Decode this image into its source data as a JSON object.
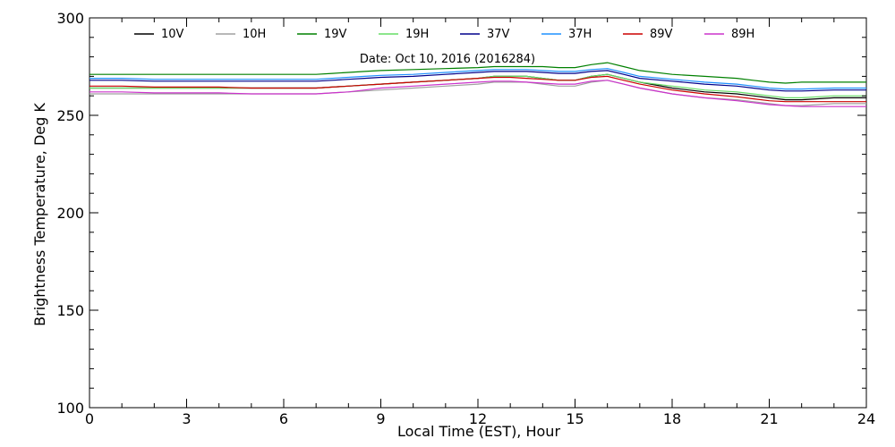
{
  "chart_data": {
    "type": "line",
    "annotation": "Date: Oct 10, 2016 (2016284)",
    "xlabel": "Local Time (EST), Hour",
    "ylabel": "Brightness Temperature, Deg K",
    "xlim": [
      0,
      24
    ],
    "ylim": [
      100,
      300
    ],
    "xticks": [
      0,
      3,
      6,
      9,
      12,
      15,
      18,
      21,
      24
    ],
    "yticks": [
      100,
      150,
      200,
      250,
      300
    ],
    "grid": false,
    "legend_position": "top",
    "x": [
      0,
      1,
      2,
      3,
      4,
      5,
      6,
      7,
      7.5,
      8,
      8.5,
      9,
      10,
      11,
      12,
      12.5,
      13,
      13.5,
      14,
      14.5,
      15,
      15.5,
      16,
      16.5,
      17,
      18,
      19,
      20,
      20.5,
      21,
      21.5,
      22,
      23,
      24
    ],
    "series": [
      {
        "name": "10V",
        "color": "#000000",
        "values": [
          264,
          264,
          264,
          264,
          264,
          264,
          264,
          264,
          264.5,
          265,
          265.5,
          266,
          267,
          268,
          269,
          270,
          270,
          270,
          269,
          268,
          268,
          270,
          271,
          269,
          267,
          264,
          262,
          261,
          260,
          259,
          258,
          258,
          259,
          259
        ]
      },
      {
        "name": "10H",
        "color": "#a0a0a0",
        "values": [
          261,
          261,
          261,
          261,
          261,
          261,
          261,
          261,
          261.5,
          262,
          262.5,
          263,
          264,
          265,
          266,
          267,
          267,
          267,
          266,
          265,
          265,
          267,
          268,
          266,
          264,
          261,
          259,
          258,
          257,
          256,
          255,
          255,
          256,
          256
        ]
      },
      {
        "name": "19V",
        "color": "#008000",
        "values": [
          271,
          271,
          271,
          271,
          271,
          271,
          271,
          271,
          271.5,
          272,
          272.5,
          273,
          273.5,
          274,
          274.5,
          275,
          275,
          275,
          275,
          274.5,
          274.5,
          276,
          277,
          275,
          273,
          271,
          270,
          269,
          268,
          267,
          266.5,
          267,
          267,
          267
        ]
      },
      {
        "name": "19H",
        "color": "#66dd66",
        "values": [
          264,
          264,
          264,
          264,
          264,
          264,
          264,
          264,
          264.5,
          265,
          265.5,
          266,
          267,
          268,
          269,
          270,
          270,
          270,
          269,
          268,
          268,
          270,
          271,
          269,
          267,
          265,
          263,
          262,
          261,
          260,
          259,
          259,
          260,
          260
        ]
      },
      {
        "name": "37V",
        "color": "#00008b",
        "values": [
          268,
          268,
          267.5,
          267.5,
          267.5,
          267.5,
          267.5,
          267.5,
          268,
          268.5,
          269,
          269.5,
          270,
          271,
          272,
          272.5,
          272.5,
          272.5,
          272,
          271.5,
          271.5,
          272.5,
          273,
          271,
          269,
          267.5,
          266,
          265,
          264,
          263,
          262.5,
          262.5,
          263,
          263
        ]
      },
      {
        "name": "37H",
        "color": "#1e90ff",
        "values": [
          269,
          269,
          268.5,
          268.5,
          268.5,
          268.5,
          268.5,
          268.5,
          269,
          269.5,
          270,
          270.5,
          271,
          272,
          273,
          273.5,
          273.5,
          273.5,
          273,
          272.5,
          272.5,
          273.5,
          274,
          272,
          270,
          268.5,
          267,
          266,
          265,
          264,
          263.5,
          263.5,
          264,
          264
        ]
      },
      {
        "name": "89V",
        "color": "#cc0000",
        "values": [
          265,
          265,
          264.5,
          264.5,
          264.5,
          264,
          264,
          264,
          264.5,
          265,
          265.5,
          266,
          267,
          268,
          269,
          269.5,
          269.5,
          269,
          268.5,
          268,
          268,
          269.5,
          270,
          268,
          266,
          263,
          261,
          259.5,
          258.5,
          257.5,
          257,
          257,
          257,
          257
        ]
      },
      {
        "name": "89H",
        "color": "#cc33cc",
        "values": [
          262,
          262,
          261.5,
          261.5,
          261.5,
          261,
          261,
          261,
          261.5,
          262,
          263,
          264,
          265,
          266,
          267,
          267.5,
          267.5,
          267,
          266.5,
          266,
          266,
          267.5,
          268,
          266,
          264,
          261,
          259,
          257.5,
          256.5,
          255.5,
          255,
          254.5,
          254.5,
          254.5
        ]
      }
    ]
  }
}
